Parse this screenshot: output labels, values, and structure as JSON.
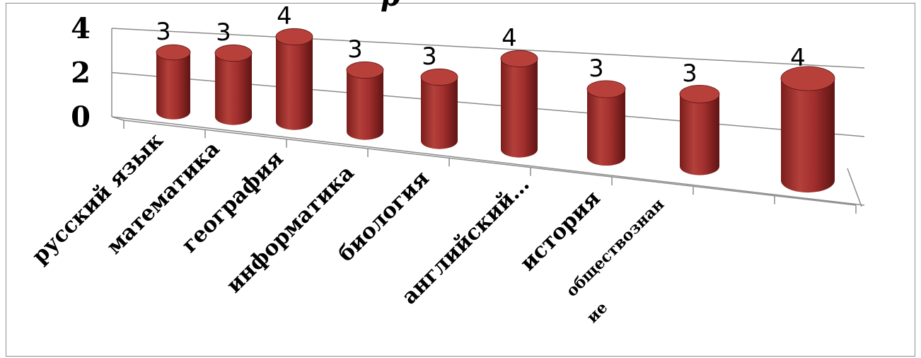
{
  "chart_data": {
    "type": "bar",
    "style": "3d-cylinder",
    "title": "р",
    "categories": [
      "русский язык",
      "математика",
      "география",
      "информатика",
      "биология",
      "английский…",
      "история",
      "обществознан ие",
      ""
    ],
    "values": [
      3,
      3,
      4,
      3,
      3,
      4,
      3,
      3,
      4
    ],
    "data_labels": [
      "3",
      "3",
      "4",
      "3",
      "3",
      "4",
      "3",
      "3",
      "4"
    ],
    "y_tick_labels": [
      "0",
      "2",
      "4"
    ],
    "xlabel": "",
    "ylabel": "",
    "ylim": [
      0,
      4
    ],
    "grid": true,
    "legend": "none",
    "bar_color": "#a3302e",
    "bar_color_dark": "#5e1413",
    "bar_top_color": "#b8403a",
    "grid_color": "#8c8c8c"
  }
}
